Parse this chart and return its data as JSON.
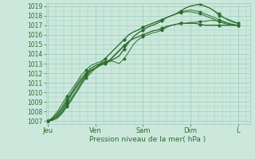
{
  "bg_color": "#cce8dd",
  "grid_color": "#99ccbb",
  "line_color": "#2d6e2d",
  "marker_color": "#2d6e2d",
  "ylabel_min": 1007,
  "ylabel_max": 1019,
  "xlabel": "Pression niveau de la mer( hPa )",
  "x_ticks_labels": [
    "Jeu",
    "Ven",
    "Sam",
    "Dim",
    "L"
  ],
  "x_ticks_pos": [
    0,
    24,
    48,
    72,
    96
  ],
  "xlim": [
    0,
    102
  ],
  "series": [
    [
      1007.0,
      1007.1,
      1007.3,
      1007.8,
      1008.5,
      1009.2,
      1010.0,
      1010.8,
      1011.5,
      1012.0,
      1012.5,
      1013.0,
      1013.2,
      1013.3,
      1013.2,
      1013.0,
      1013.5,
      1014.2,
      1015.0,
      1015.5,
      1015.8,
      1016.0,
      1016.2,
      1016.3,
      1016.5,
      1016.8,
      1017.0,
      1017.1,
      1017.2,
      1017.2,
      1017.3,
      1017.3,
      1017.4,
      1017.4,
      1017.5,
      1017.5,
      1017.4,
      1017.3,
      1017.2,
      1017.0,
      1017.0
    ],
    [
      1007.0,
      1007.2,
      1007.5,
      1008.0,
      1008.8,
      1009.5,
      1010.2,
      1011.0,
      1011.8,
      1012.5,
      1012.8,
      1013.0,
      1013.2,
      1013.3,
      1013.5,
      1013.8,
      1014.5,
      1015.2,
      1015.8,
      1016.2,
      1016.5,
      1016.8,
      1017.0,
      1017.2,
      1017.5,
      1017.8,
      1018.0,
      1018.2,
      1018.5,
      1018.8,
      1019.0,
      1019.1,
      1019.2,
      1019.0,
      1018.8,
      1018.5,
      1018.2,
      1017.8,
      1017.5,
      1017.3,
      1017.2
    ],
    [
      1007.0,
      1007.1,
      1007.4,
      1007.9,
      1008.6,
      1009.3,
      1010.0,
      1010.8,
      1011.6,
      1012.2,
      1012.5,
      1012.8,
      1013.0,
      1013.2,
      1013.5,
      1013.8,
      1014.5,
      1015.2,
      1015.8,
      1016.2,
      1016.5,
      1016.8,
      1017.0,
      1017.2,
      1017.5,
      1017.8,
      1018.0,
      1018.2,
      1018.5,
      1018.8,
      1019.0,
      1019.1,
      1019.2,
      1019.0,
      1018.8,
      1018.5,
      1018.0,
      1017.8,
      1017.6,
      1017.4,
      1017.2
    ],
    [
      1007.0,
      1007.3,
      1007.8,
      1008.5,
      1009.3,
      1010.0,
      1010.8,
      1011.5,
      1012.0,
      1012.5,
      1012.8,
      1013.0,
      1013.5,
      1014.0,
      1014.5,
      1015.0,
      1015.5,
      1016.0,
      1016.3,
      1016.5,
      1016.8,
      1017.0,
      1017.2,
      1017.4,
      1017.6,
      1017.8,
      1018.0,
      1018.2,
      1018.4,
      1018.5,
      1018.6,
      1018.5,
      1018.4,
      1018.2,
      1018.0,
      1017.8,
      1017.6,
      1017.4,
      1017.2,
      1017.1,
      1017.0
    ],
    [
      1007.0,
      1007.4,
      1008.0,
      1008.8,
      1009.6,
      1010.3,
      1011.0,
      1011.8,
      1012.3,
      1012.8,
      1013.0,
      1013.2,
      1013.5,
      1014.0,
      1014.5,
      1015.0,
      1015.5,
      1016.0,
      1016.3,
      1016.5,
      1016.8,
      1017.0,
      1017.2,
      1017.4,
      1017.6,
      1017.8,
      1018.0,
      1018.2,
      1018.3,
      1018.4,
      1018.4,
      1018.3,
      1018.2,
      1018.0,
      1017.8,
      1017.6,
      1017.4,
      1017.2,
      1017.1,
      1017.0,
      1017.0
    ],
    [
      1007.0,
      1007.2,
      1007.6,
      1008.2,
      1009.0,
      1009.8,
      1010.5,
      1011.2,
      1011.8,
      1012.3,
      1012.5,
      1012.8,
      1013.0,
      1013.3,
      1013.8,
      1014.3,
      1014.8,
      1015.3,
      1015.6,
      1015.8,
      1016.0,
      1016.2,
      1016.4,
      1016.5,
      1016.6,
      1016.8,
      1017.0,
      1017.1,
      1017.2,
      1017.2,
      1017.2,
      1017.2,
      1017.1,
      1017.0,
      1017.0,
      1017.0,
      1017.0,
      1017.0,
      1017.0,
      1017.0,
      1017.0
    ],
    [
      1007.0,
      1007.3,
      1007.7,
      1008.3,
      1009.1,
      1009.9,
      1010.6,
      1011.3,
      1011.9,
      1012.3,
      1012.6,
      1012.9,
      1013.1,
      1013.4,
      1013.9,
      1014.4,
      1014.9,
      1015.3,
      1015.6,
      1015.8,
      1016.0,
      1016.2,
      1016.4,
      1016.5,
      1016.7,
      1016.9,
      1017.0,
      1017.1,
      1017.2,
      1017.2,
      1017.2,
      1017.2,
      1017.1,
      1017.0,
      1017.0,
      1017.0,
      1017.0,
      1017.0,
      1017.0,
      1017.0,
      1017.0
    ]
  ]
}
